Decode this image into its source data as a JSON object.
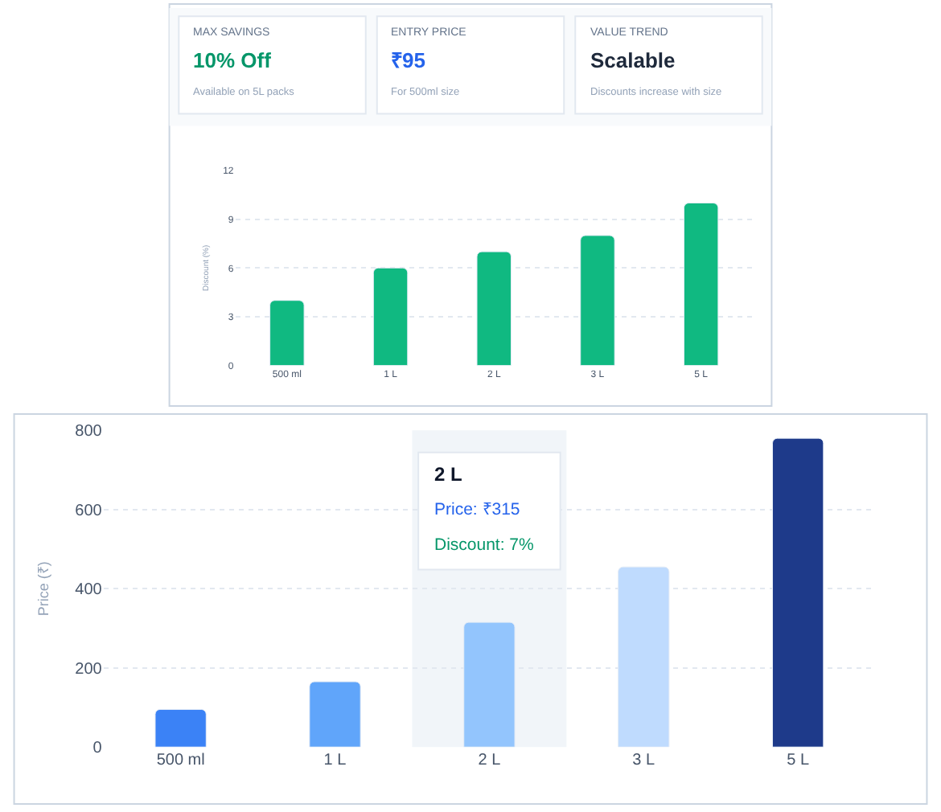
{
  "chart_data": [
    {
      "type": "other",
      "annotations": [
        "MAX SAVINGS",
        "10% Off",
        "Available on 5L packs",
        "ENTRY PRICE",
        "₹95",
        "For 500ml size",
        "VALUE TREND",
        "Scalable",
        "Discounts increase with size"
      ]
    },
    {
      "type": "bar",
      "ylabel": "Discount (%)",
      "categories": [
        "500 ml",
        "1 L",
        "2 L",
        "3 L",
        "5 L"
      ],
      "values": [
        4,
        6,
        7,
        8,
        10
      ],
      "color": "#10b981",
      "ylim": [
        0,
        12
      ],
      "yticks": [
        0,
        3,
        6,
        9,
        12
      ],
      "grid": "y"
    },
    {
      "type": "bar",
      "ylabel": "Price (₹)",
      "categories": [
        "500 ml",
        "1 L",
        "2 L",
        "3 L",
        "5 L"
      ],
      "values": [
        95,
        165,
        315,
        455,
        780
      ],
      "colors": [
        "#3b82f6",
        "#60a5fa",
        "#93c5fd",
        "#bfdbfe",
        "#1e3a8a"
      ],
      "ylim": [
        0,
        800
      ],
      "yticks": [
        0,
        200,
        400,
        600,
        800
      ],
      "grid": "y",
      "bands": [
        {
          "axis": "x",
          "from": "2 L",
          "to": "2 L",
          "color": "#f1f5f9"
        }
      ],
      "annotations": [
        "2 L",
        "Price: ₹315",
        "Discount: 7%"
      ]
    }
  ]
}
